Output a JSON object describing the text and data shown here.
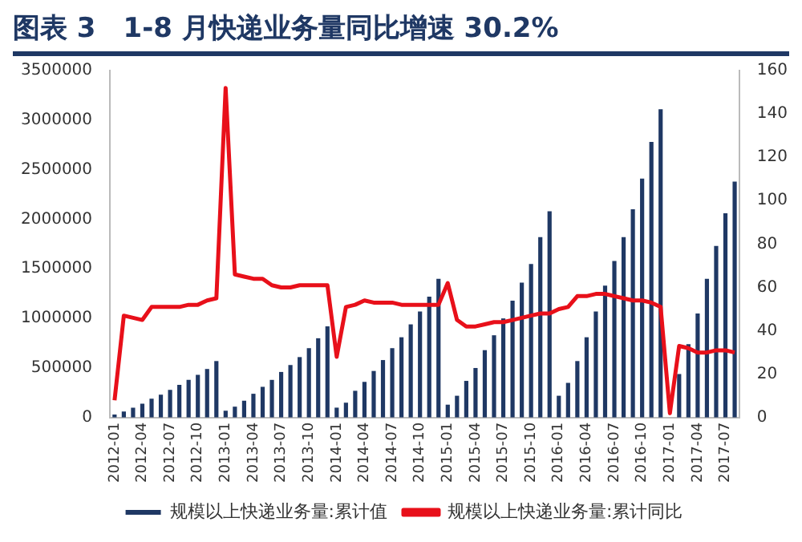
{
  "chart_data": {
    "type": "bar",
    "title": "图表 3　1-8 月快递业务量同比增速 30.2%",
    "categories": [
      "2012-01",
      null,
      null,
      "2012-04",
      null,
      null,
      "2012-07",
      null,
      null,
      "2012-10",
      null,
      null,
      "2013-01",
      null,
      null,
      "2013-04",
      null,
      null,
      "2013-07",
      null,
      null,
      "2013-10",
      null,
      null,
      "2014-01",
      null,
      null,
      "2014-04",
      null,
      null,
      "2014-07",
      null,
      null,
      "2014-10",
      null,
      null,
      "2015-01",
      null,
      null,
      "2015-04",
      null,
      null,
      "2015-07",
      null,
      null,
      "2015-10",
      null,
      null,
      "2016-01",
      null,
      null,
      "2016-04",
      null,
      null,
      "2016-07",
      null,
      null,
      "2016-10",
      null,
      null,
      "2017-01",
      null,
      null,
      "2017-04",
      null,
      null,
      "2017-07",
      null
    ],
    "series": [
      {
        "name": "规模以上快递业务量:累计值",
        "color": "#1f3864",
        "values": [
          30000,
          60000,
          100000,
          140000,
          190000,
          230000,
          280000,
          330000,
          380000,
          430000,
          490000,
          570000,
          70000,
          110000,
          170000,
          240000,
          310000,
          380000,
          460000,
          530000,
          610000,
          700000,
          800000,
          920000,
          100000,
          150000,
          270000,
          360000,
          470000,
          580000,
          700000,
          810000,
          940000,
          1070000,
          1220000,
          1400000,
          130000,
          220000,
          370000,
          500000,
          680000,
          830000,
          1000000,
          1180000,
          1360000,
          1550000,
          1820000,
          2080000,
          220000,
          350000,
          570000,
          810000,
          1070000,
          1330000,
          1580000,
          1820000,
          2100000,
          2410000,
          2780000,
          3110000,
          null,
          440000,
          740000,
          1050000,
          1400000,
          1730000,
          2060000,
          2380000
        ]
      },
      {
        "name": "规模以上快递业务量:累计同比",
        "type": "line",
        "axis": "y2",
        "color": "#e8101a",
        "values": [
          8,
          47,
          46,
          45,
          51,
          51,
          51,
          51,
          52,
          52,
          54,
          55,
          152,
          66,
          65,
          64,
          64,
          61,
          60,
          60,
          61,
          61,
          61,
          61,
          28,
          51,
          52,
          54,
          53,
          53,
          53,
          52,
          52,
          52,
          52,
          52,
          62,
          45,
          42,
          42,
          43,
          44,
          44,
          45,
          46,
          47,
          48,
          48,
          50,
          51,
          56,
          56,
          57,
          57,
          56,
          55,
          54,
          54,
          53,
          51,
          2,
          33,
          32,
          30,
          30,
          31,
          31,
          30
        ]
      }
    ],
    "ylim": [
      0,
      3500000
    ],
    "yticks": [
      0,
      500000,
      1000000,
      1500000,
      2000000,
      2500000,
      3000000,
      3500000
    ],
    "y2lim": [
      0,
      160
    ],
    "y2ticks": [
      0,
      20,
      40,
      60,
      80,
      100,
      120,
      140,
      160
    ],
    "grid": false,
    "legend": "bottom",
    "marker": "none",
    "line_style": "solid"
  }
}
